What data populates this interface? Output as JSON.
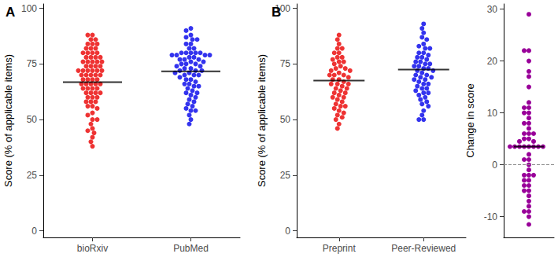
{
  "chart_data": [
    {
      "type": "scatter",
      "panel": "A",
      "ylabel": "Score (% of applicable items)",
      "categories": [
        "bioRxiv",
        "PubMed"
      ],
      "colors": [
        "#ee3333",
        "#3333ee"
      ],
      "values": [
        [
          88,
          88,
          86,
          86,
          84,
          84,
          84,
          82,
          82,
          82,
          80,
          80,
          80,
          80,
          78,
          78,
          78,
          78,
          76,
          76,
          76,
          76,
          76,
          74,
          74,
          74,
          74,
          72,
          72,
          72,
          72,
          72,
          72,
          70,
          70,
          70,
          70,
          70,
          68,
          68,
          68,
          68,
          66,
          66,
          66,
          66,
          66,
          64,
          64,
          64,
          64,
          62,
          62,
          62,
          62,
          60,
          60,
          60,
          58,
          58,
          58,
          56,
          56,
          55,
          53,
          52,
          50,
          50,
          48,
          46,
          45,
          44,
          42,
          40,
          38
        ],
        [
          91,
          90,
          88,
          87,
          86,
          86,
          84,
          84,
          82,
          82,
          80,
          80,
          80,
          80,
          80,
          79,
          79,
          79,
          79,
          78,
          78,
          77,
          77,
          77,
          76,
          76,
          75,
          75,
          75,
          74,
          74,
          73,
          73,
          72,
          72,
          72,
          71,
          71,
          70,
          70,
          70,
          69,
          68,
          68,
          67,
          66,
          66,
          65,
          65,
          64,
          63,
          62,
          62,
          61,
          60,
          59,
          58,
          57,
          56,
          55,
          54,
          54,
          52,
          50,
          48
        ]
      ],
      "means": [
        66.8,
        71.7
      ],
      "ylim": [
        -3,
        102
      ],
      "yticks": [
        0,
        25,
        50,
        75,
        100
      ]
    },
    {
      "type": "scatter",
      "panel": "B",
      "ylabel": "Score (% of applicable items)",
      "categories": [
        "Preprint",
        "Peer-Reviewed"
      ],
      "colors": [
        "#ee3333",
        "#3333ee"
      ],
      "values": [
        [
          88,
          86,
          84,
          82,
          82,
          80,
          80,
          78,
          78,
          77,
          76,
          76,
          75,
          74,
          73,
          73,
          72,
          72,
          71,
          70,
          70,
          70,
          69,
          68,
          68,
          67,
          66,
          66,
          66,
          65,
          64,
          64,
          63,
          62,
          62,
          61,
          60,
          60,
          59,
          58,
          57,
          56,
          56,
          55,
          54,
          53,
          52,
          51,
          50,
          48,
          46
        ],
        [
          93,
          91,
          89,
          87,
          86,
          84,
          83,
          82,
          82,
          80,
          80,
          79,
          78,
          78,
          77,
          76,
          76,
          75,
          75,
          74,
          74,
          73,
          73,
          72,
          72,
          71,
          70,
          70,
          69,
          69,
          68,
          68,
          67,
          66,
          66,
          65,
          64,
          64,
          63,
          62,
          62,
          61,
          60,
          59,
          58,
          57,
          56,
          54,
          52,
          50,
          50
        ]
      ],
      "means": [
        67.5,
        72.5
      ],
      "ylim": [
        -3,
        102
      ],
      "yticks": [
        0,
        25,
        50,
        75,
        100
      ]
    },
    {
      "type": "scatter",
      "ylabel": "Change in score",
      "colors": [
        "#990099"
      ],
      "values": [
        [
          29,
          22,
          22,
          20,
          18,
          17,
          15,
          12,
          11,
          11,
          10,
          10,
          9,
          8,
          8,
          7,
          6,
          6,
          6,
          5,
          5,
          4.5,
          4.5,
          3.5,
          3.5,
          3.5,
          3.5,
          3.5,
          3.5,
          3.5,
          3.5,
          2,
          1,
          1,
          0,
          -1,
          -2,
          -2,
          -2,
          -3,
          -3,
          -4,
          -4,
          -5,
          -5,
          -6,
          -7,
          -8,
          -9,
          -9,
          -10,
          -11.5
        ]
      ],
      "means": [
        3.5
      ],
      "reference_line": {
        "value": 0,
        "line_style": "dashed"
      },
      "ylim": [
        -14,
        31
      ],
      "yticks": [
        -10,
        0,
        10,
        20,
        30
      ],
      "tick_labels": "y"
    }
  ]
}
